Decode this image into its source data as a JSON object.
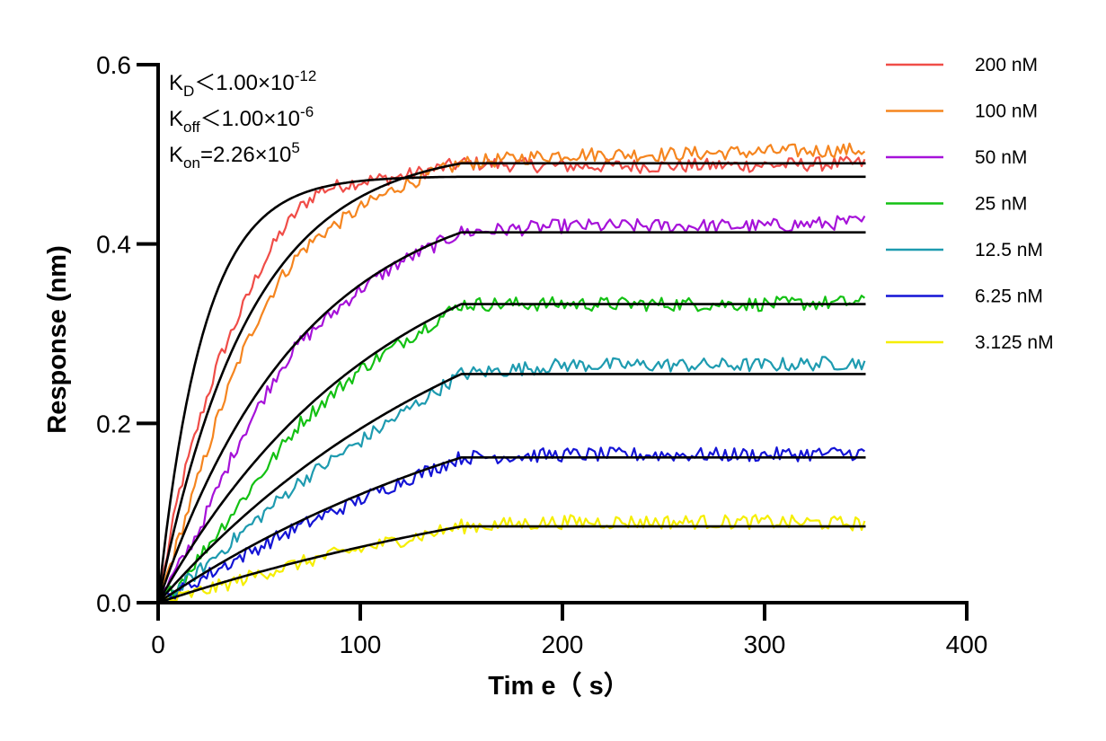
{
  "chart_data": {
    "type": "line",
    "xlabel": "Tim e（ s）",
    "ylabel": "Response (nm)",
    "xlim": [
      0,
      400
    ],
    "ylim": [
      0,
      0.6
    ],
    "xticks": [
      0,
      100,
      200,
      300,
      400
    ],
    "xtick_labels": [
      "0",
      "100",
      "200",
      "300",
      "400"
    ],
    "yticks": [
      0,
      0.2,
      0.4,
      0.6
    ],
    "ytick_labels": [
      "0.0",
      "0.2",
      "0.4",
      "0.6"
    ],
    "grid": false,
    "legend_position": "right",
    "annotations": [
      {
        "main": "K",
        "sub": "D",
        "rest": "＜1.00×10",
        "sup": "-12"
      },
      {
        "main": "K",
        "sub": "off",
        "rest": "＜1.00×10",
        "sup": "-6"
      },
      {
        "main": "K",
        "sub": "on",
        "rest": "=2.26×10",
        "sup": "5"
      }
    ],
    "association_end": 150,
    "time_end": 350,
    "fit_color": "#000000",
    "series": [
      {
        "name": "200 nM",
        "color": "#f04d48",
        "fit_plateau": 0.475,
        "data_points": [
          [
            0,
            0
          ],
          [
            10,
            0.12
          ],
          [
            20,
            0.2
          ],
          [
            30,
            0.27
          ],
          [
            40,
            0.32
          ],
          [
            50,
            0.37
          ],
          [
            60,
            0.41
          ],
          [
            70,
            0.44
          ],
          [
            80,
            0.46
          ],
          [
            100,
            0.47
          ],
          [
            120,
            0.475
          ],
          [
            150,
            0.49
          ],
          [
            200,
            0.487
          ],
          [
            250,
            0.487
          ],
          [
            300,
            0.488
          ],
          [
            350,
            0.49
          ]
        ]
      },
      {
        "name": "100 nM",
        "color": "#f5851f",
        "fit_plateau": 0.49,
        "data_points": [
          [
            0,
            0
          ],
          [
            10,
            0.07
          ],
          [
            20,
            0.14
          ],
          [
            30,
            0.21
          ],
          [
            40,
            0.27
          ],
          [
            50,
            0.32
          ],
          [
            60,
            0.36
          ],
          [
            70,
            0.39
          ],
          [
            80,
            0.41
          ],
          [
            100,
            0.44
          ],
          [
            120,
            0.465
          ],
          [
            150,
            0.49
          ],
          [
            200,
            0.5
          ],
          [
            250,
            0.5
          ],
          [
            300,
            0.503
          ],
          [
            350,
            0.505
          ]
        ]
      },
      {
        "name": "50 nM",
        "color": "#a612d9",
        "fit_plateau": 0.413,
        "data_points": [
          [
            0,
            0
          ],
          [
            10,
            0.04
          ],
          [
            20,
            0.08
          ],
          [
            30,
            0.13
          ],
          [
            40,
            0.18
          ],
          [
            50,
            0.22
          ],
          [
            60,
            0.26
          ],
          [
            70,
            0.29
          ],
          [
            80,
            0.31
          ],
          [
            100,
            0.35
          ],
          [
            120,
            0.38
          ],
          [
            150,
            0.413
          ],
          [
            200,
            0.42
          ],
          [
            250,
            0.42
          ],
          [
            300,
            0.42
          ],
          [
            350,
            0.425
          ]
        ]
      },
      {
        "name": "25 nM",
        "color": "#13c113",
        "fit_plateau": 0.333,
        "data_points": [
          [
            0,
            0
          ],
          [
            10,
            0.02
          ],
          [
            20,
            0.05
          ],
          [
            30,
            0.08
          ],
          [
            40,
            0.11
          ],
          [
            50,
            0.14
          ],
          [
            60,
            0.17
          ],
          [
            70,
            0.2
          ],
          [
            80,
            0.22
          ],
          [
            100,
            0.26
          ],
          [
            120,
            0.29
          ],
          [
            150,
            0.333
          ],
          [
            200,
            0.333
          ],
          [
            250,
            0.333
          ],
          [
            300,
            0.333
          ],
          [
            350,
            0.335
          ]
        ]
      },
      {
        "name": "12.5 nM",
        "color": "#1e9bb0",
        "fit_plateau": 0.255,
        "data_points": [
          [
            0,
            0
          ],
          [
            10,
            0.015
          ],
          [
            20,
            0.035
          ],
          [
            30,
            0.055
          ],
          [
            40,
            0.075
          ],
          [
            50,
            0.095
          ],
          [
            60,
            0.115
          ],
          [
            70,
            0.135
          ],
          [
            80,
            0.15
          ],
          [
            100,
            0.18
          ],
          [
            120,
            0.21
          ],
          [
            150,
            0.255
          ],
          [
            200,
            0.265
          ],
          [
            250,
            0.265
          ],
          [
            300,
            0.265
          ],
          [
            350,
            0.268
          ]
        ]
      },
      {
        "name": "6.25 nM",
        "color": "#1414d6",
        "fit_plateau": 0.162,
        "data_points": [
          [
            0,
            0
          ],
          [
            10,
            0.012
          ],
          [
            20,
            0.025
          ],
          [
            30,
            0.038
          ],
          [
            40,
            0.05
          ],
          [
            50,
            0.062
          ],
          [
            60,
            0.074
          ],
          [
            70,
            0.085
          ],
          [
            80,
            0.095
          ],
          [
            100,
            0.115
          ],
          [
            120,
            0.135
          ],
          [
            150,
            0.162
          ],
          [
            200,
            0.165
          ],
          [
            250,
            0.165
          ],
          [
            300,
            0.165
          ],
          [
            350,
            0.167
          ]
        ]
      },
      {
        "name": "3.125 nM",
        "color": "#f5ee00",
        "fit_plateau": 0.085,
        "data_points": [
          [
            0,
            0
          ],
          [
            10,
            0.005
          ],
          [
            20,
            0.012
          ],
          [
            30,
            0.018
          ],
          [
            40,
            0.025
          ],
          [
            50,
            0.032
          ],
          [
            60,
            0.038
          ],
          [
            70,
            0.044
          ],
          [
            80,
            0.05
          ],
          [
            100,
            0.06
          ],
          [
            120,
            0.07
          ],
          [
            150,
            0.085
          ],
          [
            200,
            0.09
          ],
          [
            250,
            0.09
          ],
          [
            300,
            0.09
          ],
          [
            350,
            0.088
          ]
        ]
      }
    ]
  }
}
